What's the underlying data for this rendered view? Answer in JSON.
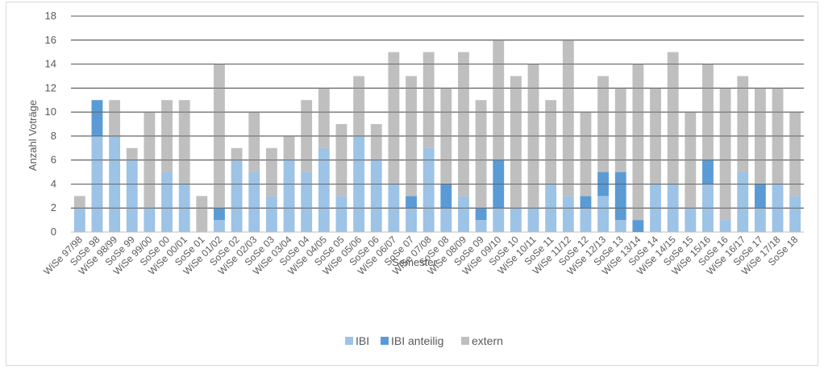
{
  "chart_data": {
    "type": "bar",
    "stacked": true,
    "ylabel": "Anzahl Voträge",
    "xlabel": "Semester",
    "ylim": [
      0,
      18
    ],
    "yticks": [
      0,
      2,
      4,
      6,
      8,
      10,
      12,
      14,
      16,
      18
    ],
    "grid": true,
    "legend_position": "bottom",
    "categories": [
      "WiSe 97/98",
      "SoSe 98",
      "WiSe 98/99",
      "SoSe 99",
      "WiSe 99/00",
      "SoSe 00",
      "WiSe 00/01",
      "SoSe 01",
      "WiSe 01/02",
      "SoSe 02",
      "WiSe 02/03",
      "SoSe 03",
      "WiSe 03/04",
      "SoSe 04",
      "WiSe 04/05",
      "SoSe 05",
      "WiSe 05/06",
      "SoSe 06",
      "WiSe 06/07",
      "SoSe 07",
      "WiSe 07/08",
      "SoSe 08",
      "WiSe 08/09",
      "SoSe 09",
      "WiSe 09/10",
      "SoSe 10",
      "WiSe 10/11",
      "SoSe 11",
      "WiSe 11/12",
      "SoSe 12",
      "WiSe 12/13",
      "SoSe 13",
      "WiSe 13/14",
      "SoSe 14",
      "WiSe 14/15",
      "SoSe 15",
      "WiSe 15/16",
      "SoSe 16",
      "WiSe 16/17",
      "SoSe 17",
      "WiSe 17/18",
      "SoSe 18"
    ],
    "series": [
      {
        "name": "IBI",
        "color": "#9dc3e6",
        "values": [
          2,
          8,
          8,
          6,
          2,
          5,
          4,
          0,
          1,
          6,
          5,
          3,
          6,
          5,
          7,
          3,
          8,
          6,
          4,
          2,
          7,
          2,
          3,
          1,
          2,
          2,
          2,
          4,
          3,
          2,
          3,
          1,
          0,
          4,
          4,
          2,
          4,
          1,
          5,
          2,
          4,
          3
        ]
      },
      {
        "name": "IBI anteilig",
        "color": "#5b9bd5",
        "values": [
          0,
          3,
          0,
          0,
          0,
          0,
          0,
          0,
          1,
          0,
          0,
          0,
          0,
          0,
          0,
          0,
          0,
          0,
          0,
          1,
          0,
          2,
          0,
          1,
          4,
          0,
          0,
          0,
          0,
          1,
          2,
          4,
          1,
          0,
          0,
          0,
          2,
          0,
          0,
          2,
          0,
          0
        ]
      },
      {
        "name": "extern",
        "color": "#bfbfbf",
        "values": [
          1,
          0,
          3,
          1,
          8,
          6,
          7,
          3,
          12,
          1,
          5,
          4,
          2,
          6,
          5,
          6,
          5,
          3,
          11,
          10,
          8,
          8,
          12,
          9,
          10,
          11,
          12,
          7,
          13,
          7,
          8,
          7,
          13,
          8,
          11,
          8,
          8,
          11,
          8,
          8,
          8,
          7
        ]
      }
    ]
  }
}
